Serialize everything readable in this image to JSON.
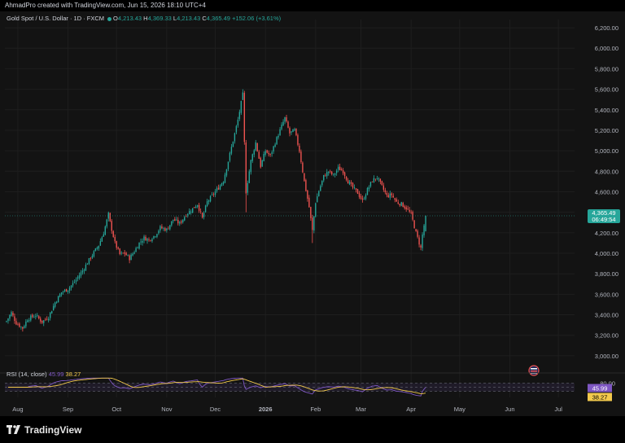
{
  "header": {
    "attribution": "AhmadPro created with TradingView.com, Jun 15, 2026 18:10 UTC+4"
  },
  "legend": {
    "symbol": "Gold Spot / U.S. Dollar · 1D · FXCM",
    "o_label": "O",
    "o_value": "4,213.43",
    "h_label": "H",
    "h_value": "4,369.33",
    "l_label": "L",
    "l_value": "4,213.43",
    "c_label": "C",
    "c_value": "4,365.49",
    "change": "+152.06 (+3.61%)"
  },
  "rsi": {
    "title": "RSI (14, close)",
    "rsi_value": "45.99",
    "ma_value": "38.27",
    "rsi_color": "#7e57c2",
    "ma_color": "#f2c94c"
  },
  "price_tag": {
    "price": "4,365.49",
    "countdown": "06:49:54",
    "color": "#26a69a"
  },
  "colors": {
    "up": "#26a69a",
    "down": "#ef5350",
    "background": "#131313",
    "grid": "#1e1e1e"
  },
  "brand": {
    "name": "TradingView",
    "logo_icon": "tradingview-logo-icon"
  },
  "event_icon": "us-flag-event-icon",
  "chart_data": {
    "type": "candlestick",
    "title": "Gold Spot / U.S. Dollar · 1D · FXCM",
    "y_ticks": [
      3000,
      3200,
      3400,
      3600,
      3800,
      4000,
      4200,
      4400,
      4600,
      4800,
      5000,
      5200,
      5400,
      5600,
      5800,
      6000,
      6200
    ],
    "y_tick_labels": [
      "3,000.00",
      "3,200.00",
      "3,400.00",
      "3,600.00",
      "3,800.00",
      "4,000.00",
      "4,200.00",
      "4,400.00",
      "4,600.00",
      "4,800.00",
      "5,000.00",
      "5,200.00",
      "5,400.00",
      "5,600.00",
      "5,800.00",
      "6,000.00",
      "6,200.00"
    ],
    "ylim": [
      2880,
      6280
    ],
    "x_labels": [
      "Aug",
      "Sep",
      "Oct",
      "Nov",
      "Dec",
      "2026",
      "Feb",
      "Mar",
      "Apr",
      "May",
      "Jun",
      "Jul"
    ],
    "x_label_days": [
      7,
      38,
      68,
      99,
      129,
      160,
      191,
      219,
      250,
      280,
      311,
      341
    ],
    "xlim": [
      -1,
      351
    ],
    "anchors": [
      [
        0,
        3340
      ],
      [
        3,
        3420
      ],
      [
        6,
        3320
      ],
      [
        10,
        3270
      ],
      [
        13,
        3360
      ],
      [
        18,
        3395
      ],
      [
        22,
        3330
      ],
      [
        26,
        3380
      ],
      [
        30,
        3520
      ],
      [
        34,
        3620
      ],
      [
        38,
        3650
      ],
      [
        42,
        3720
      ],
      [
        47,
        3830
      ],
      [
        52,
        3960
      ],
      [
        57,
        4080
      ],
      [
        60,
        4200
      ],
      [
        63,
        4380
      ],
      [
        64,
        4300
      ],
      [
        67,
        4100
      ],
      [
        70,
        3990
      ],
      [
        73,
        4000
      ],
      [
        76,
        3950
      ],
      [
        79,
        4020
      ],
      [
        82,
        4100
      ],
      [
        85,
        4150
      ],
      [
        88,
        4130
      ],
      [
        92,
        4180
      ],
      [
        95,
        4250
      ],
      [
        99,
        4230
      ],
      [
        103,
        4330
      ],
      [
        107,
        4290
      ],
      [
        111,
        4380
      ],
      [
        114,
        4420
      ],
      [
        118,
        4480
      ],
      [
        121,
        4340
      ],
      [
        124,
        4500
      ],
      [
        128,
        4580
      ],
      [
        131,
        4640
      ],
      [
        134,
        4710
      ],
      [
        137,
        4900
      ],
      [
        140,
        5100
      ],
      [
        143,
        5300
      ],
      [
        146,
        5550
      ],
      [
        148,
        4600
      ],
      [
        151,
        4900
      ],
      [
        154,
        5080
      ],
      [
        157,
        4850
      ],
      [
        160,
        5000
      ],
      [
        163,
        4950
      ],
      [
        166,
        5080
      ],
      [
        169,
        5200
      ],
      [
        172,
        5320
      ],
      [
        175,
        5170
      ],
      [
        178,
        5200
      ],
      [
        181,
        5000
      ],
      [
        184,
        4700
      ],
      [
        187,
        4450
      ],
      [
        189,
        4220
      ],
      [
        191,
        4500
      ],
      [
        193,
        4610
      ],
      [
        196,
        4750
      ],
      [
        199,
        4800
      ],
      [
        202,
        4760
      ],
      [
        205,
        4830
      ],
      [
        208,
        4800
      ],
      [
        211,
        4700
      ],
      [
        214,
        4640
      ],
      [
        217,
        4590
      ],
      [
        220,
        4510
      ],
      [
        223,
        4620
      ],
      [
        226,
        4710
      ],
      [
        229,
        4740
      ],
      [
        232,
        4650
      ],
      [
        235,
        4560
      ],
      [
        238,
        4570
      ],
      [
        241,
        4500
      ],
      [
        244,
        4480
      ],
      [
        247,
        4440
      ],
      [
        250,
        4380
      ],
      [
        253,
        4200
      ],
      [
        256,
        4050
      ],
      [
        257,
        4180
      ],
      [
        259,
        4365
      ]
    ],
    "last_close": 4365.49,
    "rsi_ylim": [
      0,
      100
    ],
    "rsi_levels": [
      70,
      50,
      30
    ],
    "rsi_upper_label": "80.00"
  }
}
